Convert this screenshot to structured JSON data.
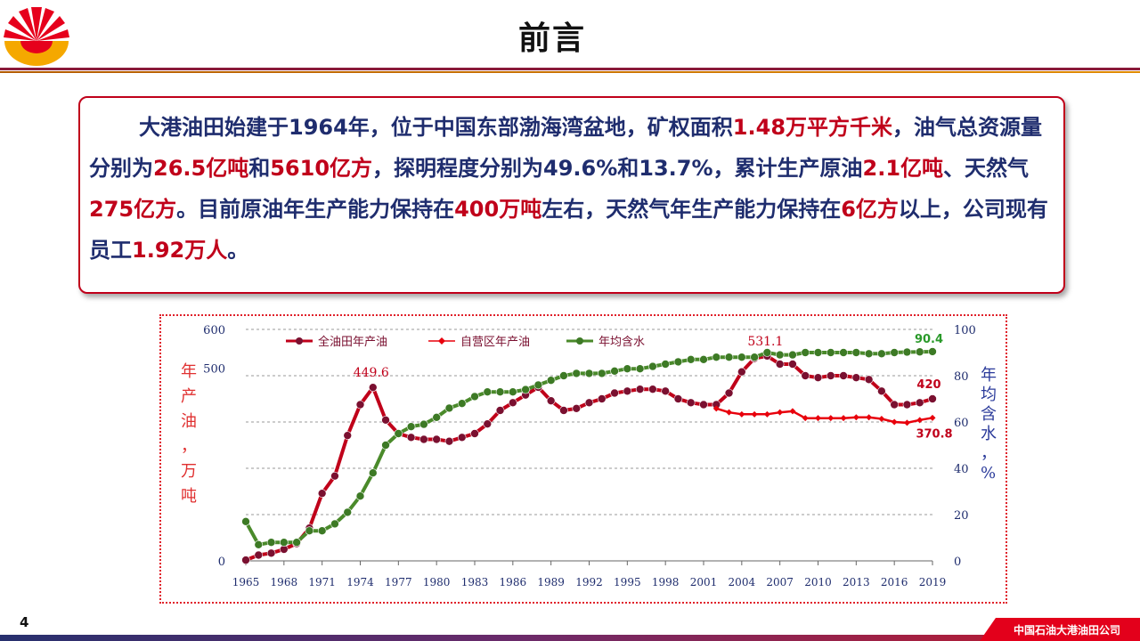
{
  "header": {
    "title": "前言",
    "logo_icon": "petrochina-sunflower-logo-icon"
  },
  "intro": {
    "segments": [
      {
        "text": "大港油田始建于1964年，位于中国东部渤海湾盆地，矿权面积",
        "hl": false
      },
      {
        "text": "1.48万平方千米",
        "hl": true
      },
      {
        "text": "，油气总资源量分别为",
        "hl": false
      },
      {
        "text": "26.5亿吨",
        "hl": true
      },
      {
        "text": "和",
        "hl": false
      },
      {
        "text": "5610亿方",
        "hl": true
      },
      {
        "text": "，探明程度分别为49.6%和13.7%，累计生产原油",
        "hl": false
      },
      {
        "text": "2.1亿吨",
        "hl": true
      },
      {
        "text": "、天然气",
        "hl": false
      },
      {
        "text": "275亿方",
        "hl": true
      },
      {
        "text": "。目前原油年生产能力保持在",
        "hl": false
      },
      {
        "text": "400万吨",
        "hl": true
      },
      {
        "text": "左右，天然气年生产能力保持在",
        "hl": false
      },
      {
        "text": "6亿方",
        "hl": true
      },
      {
        "text": "以上，公司现有员工",
        "hl": false
      },
      {
        "text": "1.92万人",
        "hl": true
      },
      {
        "text": "。",
        "hl": false
      }
    ],
    "colors": {
      "normal": "#1f2d6e",
      "highlight": "#c0001a"
    }
  },
  "chart_data": {
    "type": "line",
    "x_ticks": [
      "1965",
      "1968",
      "1971",
      "1974",
      "1977",
      "1980",
      "1983",
      "1986",
      "1989",
      "1992",
      "1995",
      "1998",
      "2001",
      "2004",
      "2007",
      "2010",
      "2013",
      "2016",
      "2019"
    ],
    "xlim": [
      1965,
      2019
    ],
    "left_axis": {
      "ticks": [
        "0",
        "500",
        "600"
      ],
      "ylim": [
        0,
        600
      ],
      "label_outer": "年产油（万吨）",
      "label_inner": "年产油，万吨"
    },
    "right_axis": {
      "ticks": [
        "0",
        "20",
        "40",
        "60",
        "80",
        "100"
      ],
      "ylim": [
        0,
        100
      ],
      "label_outer": "含水（%）",
      "label_inner": "年均含水，%"
    },
    "legend": {
      "position": "top",
      "entries": [
        "全油田年产油",
        "自营区年产油",
        "年均含水"
      ]
    },
    "grid": "horizontal-dashed",
    "series": [
      {
        "name": "全油田年产油",
        "axis": "left",
        "color": "#c0001a",
        "marker": "circle-dark",
        "x": [
          1965,
          1966,
          1967,
          1968,
          1969,
          1970,
          1971,
          1972,
          1973,
          1974,
          1975,
          1976,
          1977,
          1978,
          1979,
          1980,
          1981,
          1982,
          1983,
          1984,
          1985,
          1986,
          1987,
          1988,
          1989,
          1990,
          1991,
          1992,
          1993,
          1994,
          1995,
          1996,
          1997,
          1998,
          1999,
          2000,
          2001,
          2002,
          2003,
          2004,
          2005,
          2006,
          2007,
          2008,
          2009,
          2010,
          2011,
          2012,
          2013,
          2014,
          2015,
          2016,
          2017,
          2018,
          2019
        ],
        "y": [
          2,
          15,
          20,
          30,
          45,
          85,
          175,
          220,
          325,
          405,
          449.6,
          365,
          330,
          320,
          315,
          315,
          310,
          320,
          330,
          355,
          390,
          410,
          430,
          450,
          415,
          390,
          395,
          410,
          420,
          435,
          440,
          445,
          445,
          440,
          420,
          410,
          405,
          405,
          435,
          490,
          525,
          531.1,
          510,
          510,
          480,
          475,
          480,
          480,
          475,
          470,
          440,
          405,
          405,
          410,
          420
        ]
      },
      {
        "name": "自营区年产油",
        "axis": "left",
        "color": "#e8000c",
        "marker": "diamond-red",
        "x": [
          2002,
          2003,
          2004,
          2005,
          2006,
          2007,
          2008,
          2009,
          2010,
          2011,
          2012,
          2013,
          2014,
          2015,
          2016,
          2017,
          2018,
          2019
        ],
        "y": [
          395,
          385,
          380,
          380,
          380,
          385,
          388,
          370,
          370,
          370,
          370,
          372,
          372,
          368,
          360,
          358,
          365,
          370.8
        ]
      },
      {
        "name": "年均含水",
        "axis": "right",
        "color": "#4a8a2a",
        "marker": "circle-green",
        "x": [
          1965,
          1966,
          1967,
          1968,
          1969,
          1970,
          1971,
          1972,
          1973,
          1974,
          1975,
          1976,
          1977,
          1978,
          1979,
          1980,
          1981,
          1982,
          1983,
          1984,
          1985,
          1986,
          1987,
          1988,
          1989,
          1990,
          1991,
          1992,
          1993,
          1994,
          1995,
          1996,
          1997,
          1998,
          1999,
          2000,
          2001,
          2002,
          2003,
          2004,
          2005,
          2006,
          2007,
          2008,
          2009,
          2010,
          2011,
          2012,
          2013,
          2014,
          2015,
          2016,
          2017,
          2018,
          2019
        ],
        "y": [
          17,
          7,
          8,
          8,
          8,
          13,
          13,
          16,
          21,
          28,
          38,
          50,
          55,
          58,
          59,
          62,
          66,
          68,
          71,
          73,
          73,
          73,
          74,
          76,
          78,
          80,
          81,
          81,
          81,
          82,
          83,
          83,
          84,
          85,
          86,
          87,
          87,
          88,
          88,
          88,
          88,
          90,
          89,
          89,
          90,
          90,
          90,
          90,
          90,
          89.5,
          89.5,
          90,
          90.2,
          90.3,
          90.4
        ]
      }
    ],
    "annotations": [
      {
        "text": "449.6",
        "series": "全油田年产油",
        "x": 1975,
        "y": 449.6,
        "color": "#c0001a"
      },
      {
        "text": "531.1",
        "series": "全油田年产油",
        "x": 2006,
        "y": 531.1,
        "color": "#c0001a"
      },
      {
        "text": "420",
        "series": "全油田年产油",
        "x": 2019,
        "y": 420,
        "color": "#c0001a"
      },
      {
        "text": "370.8",
        "series": "自营区年产油",
        "x": 2019,
        "y": 370.8,
        "color": "#c0001a"
      },
      {
        "text": "90.4",
        "series": "年均含水",
        "x": 2019,
        "y": 90.4,
        "color": "#2a9a2a"
      }
    ]
  },
  "footer": {
    "page_number": "4",
    "company": "中国石油大港油田公司"
  }
}
